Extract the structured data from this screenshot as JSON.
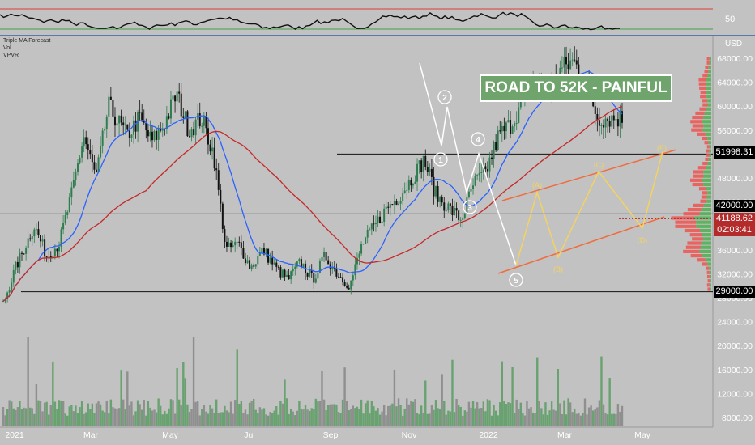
{
  "indicator_panel": {
    "level_label": "50"
  },
  "legend_items": [
    "Triple MA Forecast",
    "Vol",
    "VPVR"
  ],
  "banner": {
    "text": "ROAD TO 52K - PAINFUL"
  },
  "price_badges": {
    "target": "51998.31",
    "resistance": "42000.00",
    "current": "41188.62",
    "countdown": "02:03:41",
    "support": "29000.00"
  },
  "chart_data": {
    "type": "candlestick",
    "currency_label": "USD",
    "y_ticks": [
      "68000.00",
      "64000.00",
      "60000.00",
      "56000.00",
      "52000.00",
      "48000.00",
      "44000.00",
      "40000.00",
      "36000.00",
      "32000.00",
      "28000.00",
      "24000.00",
      "20000.00",
      "16000.00",
      "12000.00",
      "8000.00"
    ],
    "x_ticks": [
      "2021",
      "Mar",
      "May",
      "Jul",
      "Sep",
      "Nov",
      "2022",
      "Mar",
      "May"
    ],
    "ylim": [
      7000,
      70000
    ],
    "horizontal_levels": [
      51998.31,
      42000.0,
      29000.0
    ],
    "price_path": [
      [
        0,
        27000
      ],
      [
        0.02,
        33000
      ],
      [
        0.05,
        40000
      ],
      [
        0.07,
        35000
      ],
      [
        0.09,
        37000
      ],
      [
        0.11,
        45000
      ],
      [
        0.13,
        55000
      ],
      [
        0.15,
        48000
      ],
      [
        0.17,
        60000
      ],
      [
        0.2,
        55000
      ],
      [
        0.22,
        58000
      ],
      [
        0.24,
        54000
      ],
      [
        0.26,
        57000
      ],
      [
        0.28,
        62000
      ],
      [
        0.3,
        56000
      ],
      [
        0.32,
        58000
      ],
      [
        0.34,
        52000
      ],
      [
        0.36,
        36000
      ],
      [
        0.38,
        37000
      ],
      [
        0.4,
        33000
      ],
      [
        0.42,
        36000
      ],
      [
        0.44,
        33000
      ],
      [
        0.46,
        31000
      ],
      [
        0.48,
        34000
      ],
      [
        0.5,
        31000
      ],
      [
        0.52,
        35000
      ],
      [
        0.54,
        32000
      ],
      [
        0.56,
        30000
      ],
      [
        0.58,
        37000
      ],
      [
        0.6,
        40000
      ],
      [
        0.62,
        43000
      ],
      [
        0.64,
        45000
      ],
      [
        0.66,
        48000
      ],
      [
        0.68,
        51000
      ],
      [
        0.7,
        45000
      ],
      [
        0.72,
        43000
      ],
      [
        0.74,
        41000
      ],
      [
        0.76,
        47000
      ],
      [
        0.78,
        49000
      ],
      [
        0.8,
        55000
      ],
      [
        0.82,
        57000
      ],
      [
        0.84,
        61000
      ],
      [
        0.86,
        64000
      ],
      [
        0.88,
        62000
      ],
      [
        0.9,
        66000
      ],
      [
        0.92,
        67500
      ],
      [
        0.94,
        65000
      ],
      [
        0.96,
        58000
      ]
    ],
    "elliott_waves": {
      "impulse": [
        "1",
        "2",
        "3",
        "4",
        "5"
      ],
      "corrective": [
        "(A)",
        "(B)",
        "(C)",
        "(D)",
        "(E)"
      ]
    }
  },
  "colors": {
    "background": "#c2c2c2",
    "up_candle": "#2e7d4f",
    "down_candle": "#111111",
    "ma_blue": "#2962ff",
    "ma_red": "#c62828",
    "wave_white": "#ffffff",
    "wave_yellow": "#f4d35e",
    "channel_orange": "#f26b3a",
    "vpvr_green": "#4caf50",
    "vpvr_red": "#ef5350"
  }
}
